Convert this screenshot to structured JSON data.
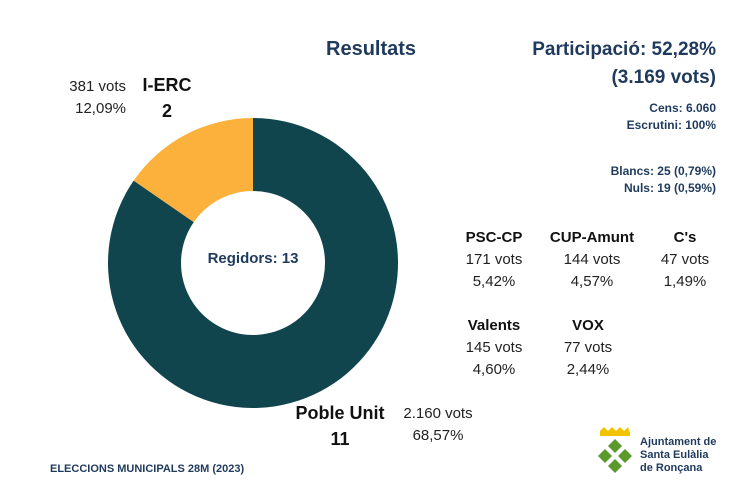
{
  "title": "Resultats",
  "participation": {
    "line1": "Participació: 52,28%",
    "line2": "(3.169 vots)",
    "cens": "Cens: 6.060",
    "escrutini": "Escrutini: 100%",
    "blancs": "Blancs: 25 (0,79%)",
    "nuls": "Nuls: 19 (0,59%)"
  },
  "chart_data": {
    "type": "pie",
    "style": "donut",
    "center_label": "Regidors: 13",
    "slices": [
      {
        "name": "Poble Unit",
        "seats": 11,
        "votes": "2.160 vots",
        "percent": "68,57%",
        "value": 68.57,
        "color": "#10454d"
      },
      {
        "name": "I-ERC",
        "seats": 2,
        "votes": "381 vots",
        "percent": "12,09%",
        "value": 12.09,
        "color": "#fbb13c"
      }
    ],
    "seat_values": [
      11,
      2
    ],
    "other_parties": [
      {
        "name": "PSC-CP",
        "votes": "171 vots",
        "percent": "5,42%"
      },
      {
        "name": "CUP-Amunt",
        "votes": "144 vots",
        "percent": "4,57%"
      },
      {
        "name": "C's",
        "votes": "47 vots",
        "percent": "1,49%"
      },
      {
        "name": "Valents",
        "votes": "145 vots",
        "percent": "4,60%"
      },
      {
        "name": "VOX",
        "votes": "77 vots",
        "percent": "2,44%"
      }
    ]
  },
  "labels": {
    "erc_name": "I-ERC",
    "erc_seats": "2",
    "erc_votes": "381 vots",
    "erc_percent": "12,09%",
    "pu_name": "Poble Unit",
    "pu_seats": "11",
    "pu_votes": "2.160 vots",
    "pu_percent": "68,57%"
  },
  "footer": "ELECCIONS MUNICIPALS 28M (2023)",
  "logo": {
    "line1": "Ajuntament de",
    "line2": "Santa Eulàlia",
    "line3": "de Ronçana"
  }
}
